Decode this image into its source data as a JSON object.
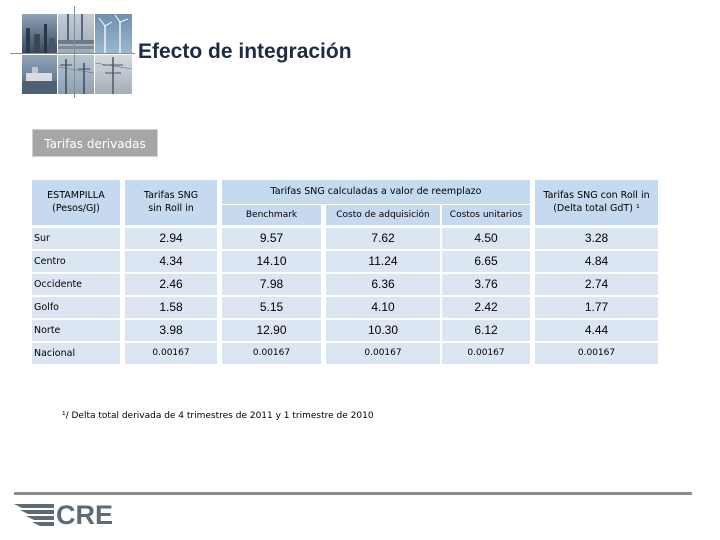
{
  "header": {
    "title": "Efecto de integración"
  },
  "section_label": "Tarifas derivadas",
  "table": {
    "col_estampilla": "ESTAMPILLA (Pesos/GJ)",
    "col_sin_roll": "Tarifas SNG sin Roll in",
    "col_group": "Tarifas SNG calculadas a valor de reemplazo",
    "sub_benchmark": "Benchmark",
    "sub_costo_adq": "Costo de adquisición",
    "sub_costos_unit": "Costos unitarios",
    "col_con_roll": "Tarifas SNG con Roll in (Delta total GdT) ¹",
    "rows": [
      {
        "label": "Sur",
        "sin_roll": "2.94",
        "benchmark": "9.57",
        "costo_adq": "7.62",
        "costos_unit": "4.50",
        "con_roll": "3.28"
      },
      {
        "label": "Centro",
        "sin_roll": "4.34",
        "benchmark": "14.10",
        "costo_adq": "11.24",
        "costos_unit": "6.65",
        "con_roll": "4.84"
      },
      {
        "label": "Occidente",
        "sin_roll": "2.46",
        "benchmark": "7.98",
        "costo_adq": "6.36",
        "costos_unit": "3.76",
        "con_roll": "2.74"
      },
      {
        "label": "Golfo",
        "sin_roll": "1.58",
        "benchmark": "5.15",
        "costo_adq": "4.10",
        "costos_unit": "2.42",
        "con_roll": "1.77"
      },
      {
        "label": "Norte",
        "sin_roll": "3.98",
        "benchmark": "12.90",
        "costo_adq": "10.30",
        "costos_unit": "6.12",
        "con_roll": "4.44"
      },
      {
        "label": "Nacional",
        "sin_roll": "0.00167",
        "benchmark": "0.00167",
        "costo_adq": "0.00167",
        "costos_unit": "0.00167",
        "con_roll": "0.00167"
      }
    ]
  },
  "footnote": "¹/ Delta total derivada de 4 trimestres de 2011 y 1 trimestre de 2010",
  "logo_text": "CRE",
  "colors": {
    "header_bg": "#c5d9ef",
    "cell_bg": "#dce6f2",
    "title": "#1f2a44",
    "label_bg": "#a6a6a6"
  }
}
